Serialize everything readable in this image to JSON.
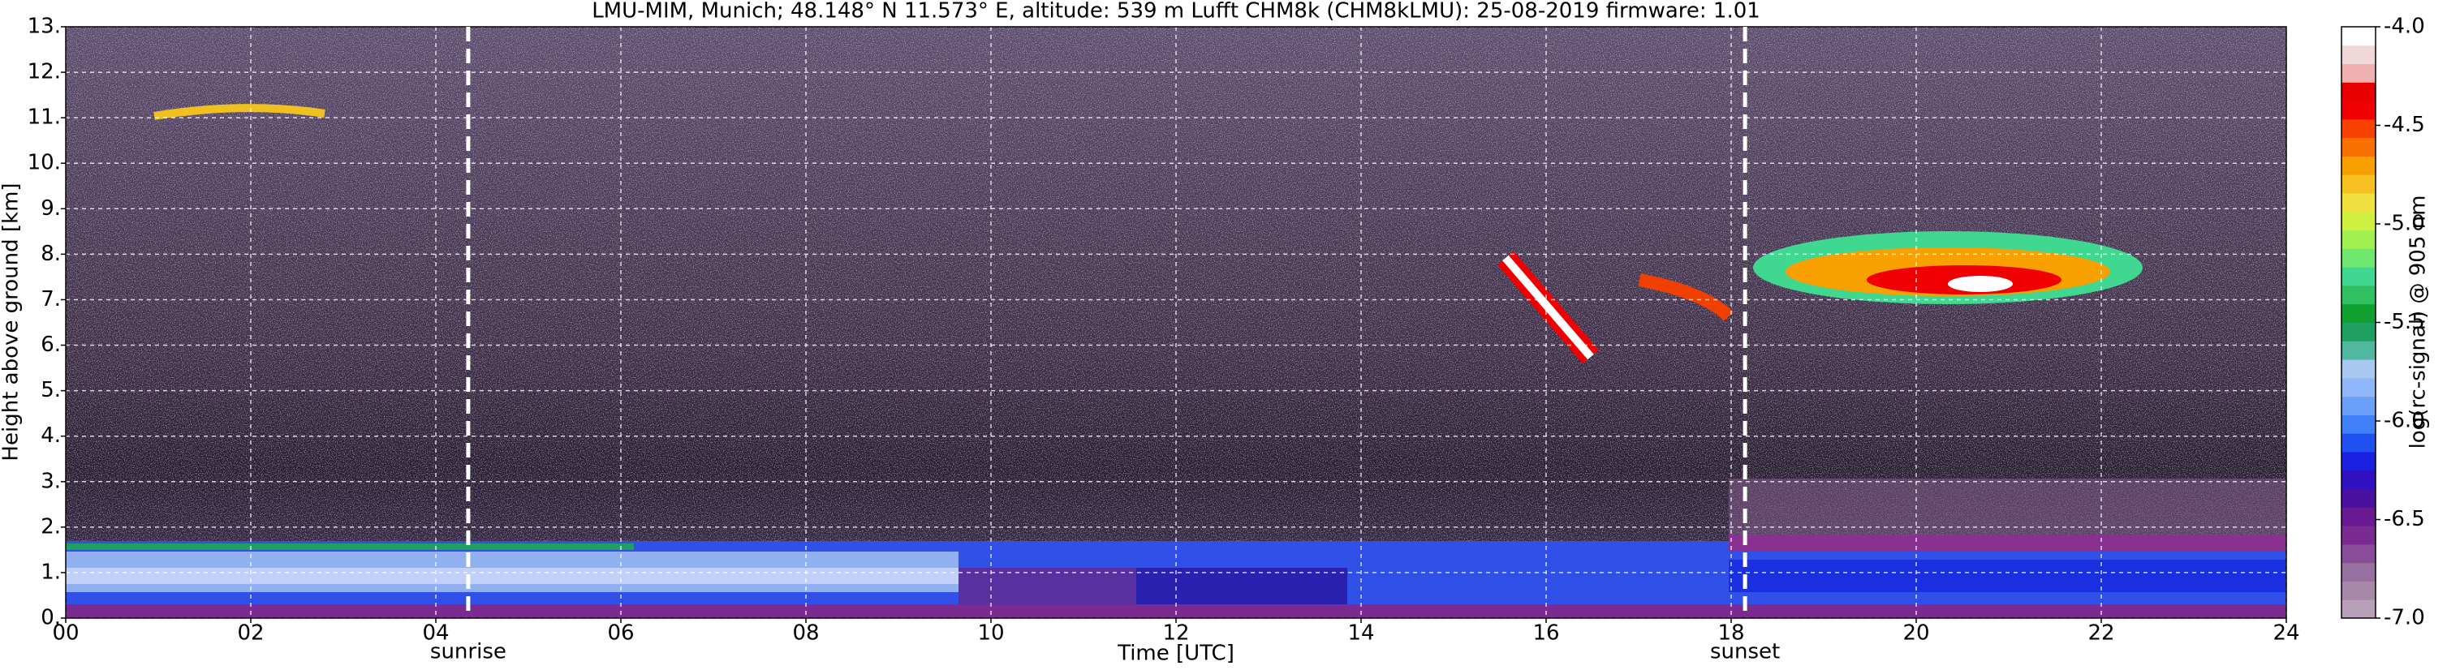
{
  "chart_data": {
    "type": "heatmap",
    "title": "LMU-MIM, Munich; 48.148° N 11.573° E, altitude: 539 m    Lufft CHM8k (CHM8kLMU): 25-08-2019    firmware: 1.01",
    "xlabel": "Time [UTC]",
    "ylabel": "Height above ground [km]",
    "xlim": [
      0,
      24
    ],
    "xticks": [
      {
        "value": 0,
        "label": "00"
      },
      {
        "value": 2,
        "label": "02"
      },
      {
        "value": 4,
        "label": "04"
      },
      {
        "value": 6,
        "label": "06"
      },
      {
        "value": 8,
        "label": "08"
      },
      {
        "value": 10,
        "label": "10"
      },
      {
        "value": 12,
        "label": "12"
      },
      {
        "value": 14,
        "label": "14"
      },
      {
        "value": 16,
        "label": "16"
      },
      {
        "value": 18,
        "label": "18"
      },
      {
        "value": 20,
        "label": "20"
      },
      {
        "value": 22,
        "label": "22"
      },
      {
        "value": 24,
        "label": "24"
      }
    ],
    "ylim": [
      0,
      13
    ],
    "yticks": [
      {
        "value": 0,
        "label": "0."
      },
      {
        "value": 1,
        "label": "1."
      },
      {
        "value": 2,
        "label": "2."
      },
      {
        "value": 3,
        "label": "3."
      },
      {
        "value": 4,
        "label": "4."
      },
      {
        "value": 5,
        "label": "5."
      },
      {
        "value": 6,
        "label": "6."
      },
      {
        "value": 7,
        "label": "7."
      },
      {
        "value": 8,
        "label": "8."
      },
      {
        "value": 9,
        "label": "9."
      },
      {
        "value": 10,
        "label": "10."
      },
      {
        "value": 11,
        "label": "11."
      },
      {
        "value": 12,
        "label": "12."
      },
      {
        "value": 13,
        "label": "13."
      }
    ],
    "grid": true,
    "annotations": [
      {
        "x": 4.35,
        "label": "sunrise"
      },
      {
        "x": 18.15,
        "label": "sunset"
      }
    ],
    "colorbar": {
      "label": "log(rc-signal) @ 905 nm",
      "lim": [
        -7,
        -4
      ],
      "ticks": [
        {
          "value": -7,
          "label": "-7.0"
        },
        {
          "value": -6.5,
          "label": "-6.5"
        },
        {
          "value": -6,
          "label": "-6.0"
        },
        {
          "value": -5.5,
          "label": "-5.5"
        },
        {
          "value": -5,
          "label": "-5.0"
        },
        {
          "value": -4.5,
          "label": "-4.5"
        },
        {
          "value": -4,
          "label": "-4.0"
        }
      ],
      "colors": [
        "#b8a0b8",
        "#a888a8",
        "#9870a0",
        "#884c98",
        "#7a2a90",
        "#6a1a90",
        "#4a10a0",
        "#3010c0",
        "#1a20e0",
        "#2050f0",
        "#4080f8",
        "#6aa0f8",
        "#90b8f8",
        "#a8c8f0",
        "#50b8a0",
        "#20a060",
        "#10a030",
        "#30c060",
        "#40d890",
        "#70e870",
        "#a0f050",
        "#d0f040",
        "#f0e040",
        "#f8c020",
        "#f8a000",
        "#f87000",
        "#f84000",
        "#f00000",
        "#e80000",
        "#f0b0b0",
        "#f0d8d8",
        "#ffffff"
      ]
    }
  }
}
